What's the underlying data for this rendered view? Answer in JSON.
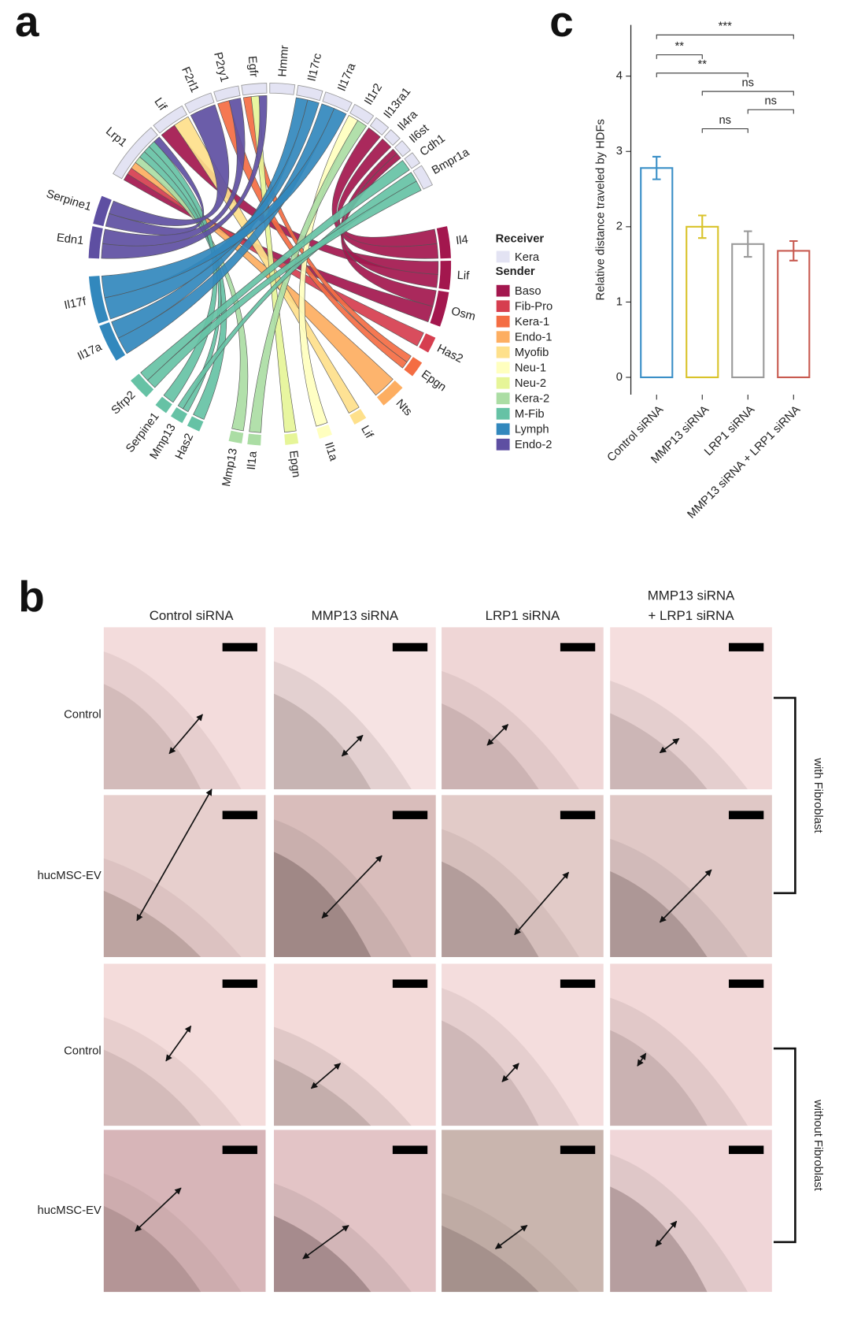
{
  "panel_labels": [
    "a",
    "b",
    "c"
  ],
  "chord": {
    "nodes": [
      {
        "label": "Lrp1",
        "color": "#e3e3f3"
      },
      {
        "label": "Lif",
        "color": "#e3e3f3"
      },
      {
        "label": "F2rl1",
        "color": "#e3e3f3"
      },
      {
        "label": "P2ry1",
        "color": "#e3e3f3"
      },
      {
        "label": "Egfr",
        "color": "#e3e3f3"
      },
      {
        "label": "Hmmr",
        "color": "#e3e3f3"
      },
      {
        "label": "Il17rc",
        "color": "#e3e3f3"
      },
      {
        "label": "Il17ra",
        "color": "#e3e3f3"
      },
      {
        "label": "Il1r2",
        "color": "#e3e3f3"
      },
      {
        "label": "Il13ra1",
        "color": "#e3e3f3"
      },
      {
        "label": "Il4ra",
        "color": "#e3e3f3"
      },
      {
        "label": "Il6st",
        "color": "#e3e3f3"
      },
      {
        "label": "Cdh1",
        "color": "#e3e3f3"
      },
      {
        "label": "Bmpr1a",
        "color": "#e3e3f3"
      },
      {
        "label": "Il4",
        "color": "#a3174e"
      },
      {
        "label": "Lif",
        "color": "#a3174e"
      },
      {
        "label": "Osm",
        "color": "#a3174e"
      },
      {
        "label": "Has2",
        "color": "#d63e4f"
      },
      {
        "label": "Epgn",
        "color": "#f46d43"
      },
      {
        "label": "Nts",
        "color": "#fdae61"
      },
      {
        "label": "Lif",
        "color": "#fee08b"
      },
      {
        "label": "Il1a",
        "color": "#ffffbf"
      },
      {
        "label": "Epgn",
        "color": "#e6f598"
      },
      {
        "label": "Il1a",
        "color": "#abdda4"
      },
      {
        "label": "Mmp13",
        "color": "#abdda4"
      },
      {
        "label": "Has2",
        "color": "#66c2a5"
      },
      {
        "label": "Mmp13",
        "color": "#66c2a5"
      },
      {
        "label": "Serpine1",
        "color": "#66c2a5"
      },
      {
        "label": "Sfrp2",
        "color": "#66c2a5"
      },
      {
        "label": "Il17a",
        "color": "#3288bd"
      },
      {
        "label": "Il17f",
        "color": "#3288bd"
      },
      {
        "label": "Edn1",
        "color": "#5e4fa2"
      },
      {
        "label": "Serpine1",
        "color": "#5e4fa2"
      }
    ],
    "legend": {
      "receiver_title": "Receiver",
      "receivers": [
        {
          "label": "Kera",
          "color": "#e3e3f3"
        }
      ],
      "sender_title": "Sender",
      "senders": [
        {
          "label": "Baso",
          "color": "#a3174e"
        },
        {
          "label": "Fib-Pro",
          "color": "#d63e4f"
        },
        {
          "label": "Kera-1",
          "color": "#f46d43"
        },
        {
          "label": "Endo-1",
          "color": "#fdae61"
        },
        {
          "label": "Myofib",
          "color": "#fee08b"
        },
        {
          "label": "Neu-1",
          "color": "#ffffbf"
        },
        {
          "label": "Neu-2",
          "color": "#e6f598"
        },
        {
          "label": "Kera-2",
          "color": "#abdda4"
        },
        {
          "label": "M-Fib",
          "color": "#66c2a5"
        },
        {
          "label": "Lymph",
          "color": "#3288bd"
        },
        {
          "label": "Endo-2",
          "color": "#5e4fa2"
        }
      ]
    }
  },
  "chart_data": {
    "type": "bar",
    "y_label": "Relative distance traveled by HDFs",
    "categories": [
      "Control siRNA",
      "MMP13 siRNA",
      "LRP1 siRNA",
      "MMP13 siRNA + LRP1 siRNA"
    ],
    "values": [
      2.78,
      2.0,
      1.77,
      1.68
    ],
    "errors": [
      0.15,
      0.15,
      0.17,
      0.13
    ],
    "colors": [
      "#3a8fc7",
      "#d9c32a",
      "#9a9a9a",
      "#c85a50"
    ],
    "ylim": [
      -0.23,
      4.68
    ],
    "yticks": [
      0,
      1,
      2,
      3,
      4
    ],
    "annotations": [
      {
        "from": "Control siRNA",
        "to": "MMP13 siRNA + LRP1 siRNA",
        "label": "***"
      },
      {
        "from": "Control siRNA",
        "to": "MMP13 siRNA",
        "label": "**"
      },
      {
        "from": "Control siRNA",
        "to": "LRP1 siRNA",
        "label": "**"
      },
      {
        "from": "MMP13 siRNA",
        "to": "MMP13 siRNA + LRP1 siRNA",
        "label": "ns"
      },
      {
        "from": "LRP1 siRNA",
        "to": "MMP13 siRNA + LRP1 siRNA",
        "label": "ns"
      },
      {
        "from": "MMP13 siRNA",
        "to": "LRP1 siRNA",
        "label": "ns"
      }
    ]
  },
  "images": {
    "columns": [
      [
        "Control siRNA"
      ],
      [
        "MMP13 siRNA"
      ],
      [
        "LRP1 siRNA"
      ],
      [
        "MMP13 siRNA",
        "+ LRP1 siRNA"
      ]
    ],
    "rows": [
      "Control",
      "hucMSC-EV",
      "Control",
      "hucMSC-EV"
    ],
    "groups": [
      "with Fibroblast",
      "without Fibroblast"
    ]
  }
}
